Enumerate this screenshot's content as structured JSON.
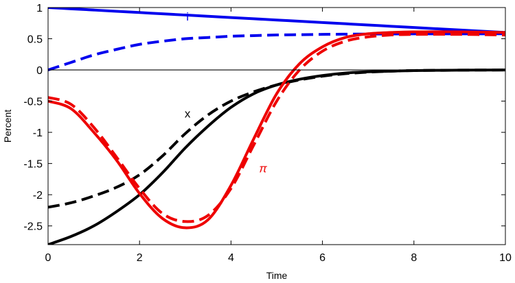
{
  "chart_data": {
    "type": "line",
    "title": "",
    "xlabel": "Time",
    "ylabel": "Percent",
    "xlim": [
      0,
      10
    ],
    "ylim": [
      -2.8,
      1
    ],
    "xticks": [
      0,
      2,
      4,
      6,
      8,
      10
    ],
    "yticks": [
      1,
      0.5,
      0,
      -0.5,
      -1,
      -1.5,
      -2,
      -2.5
    ],
    "grid": false,
    "zero_line": true,
    "x": [
      0,
      0.5,
      1,
      1.5,
      2,
      2.5,
      3,
      3.5,
      4,
      4.5,
      5,
      5.5,
      6,
      6.5,
      7,
      7.5,
      8,
      9,
      10
    ],
    "series": [
      {
        "key": "i_solid",
        "color": "#0000ee",
        "dash": "solid",
        "values": [
          1.0,
          0.98,
          0.96,
          0.94,
          0.92,
          0.9,
          0.88,
          0.86,
          0.84,
          0.82,
          0.8,
          0.78,
          0.76,
          0.74,
          0.72,
          0.7,
          0.68,
          0.64,
          0.6
        ]
      },
      {
        "key": "i_dashed",
        "color": "#0000ee",
        "dash": "dashed",
        "values": [
          0.0,
          0.12,
          0.24,
          0.33,
          0.41,
          0.46,
          0.5,
          0.52,
          0.54,
          0.55,
          0.56,
          0.565,
          0.57,
          0.573,
          0.575,
          0.577,
          0.578,
          0.578,
          0.58
        ]
      },
      {
        "key": "x_solid",
        "color": "#000000",
        "dash": "solid",
        "values": [
          -2.8,
          -2.67,
          -2.5,
          -2.27,
          -2.0,
          -1.65,
          -1.25,
          -0.9,
          -0.6,
          -0.38,
          -0.24,
          -0.15,
          -0.09,
          -0.05,
          -0.03,
          -0.02,
          -0.01,
          -0.004,
          -0.001
        ]
      },
      {
        "key": "x_dashed",
        "color": "#000000",
        "dash": "dashed",
        "values": [
          -2.2,
          -2.13,
          -2.02,
          -1.88,
          -1.68,
          -1.38,
          -1.02,
          -0.72,
          -0.5,
          -0.35,
          -0.24,
          -0.16,
          -0.1,
          -0.06,
          -0.035,
          -0.02,
          -0.01,
          -0.004,
          -0.001
        ]
      },
      {
        "key": "pi_solid",
        "color": "#ee0000",
        "dash": "solid",
        "values": [
          -0.5,
          -0.62,
          -1.0,
          -1.45,
          -1.98,
          -2.38,
          -2.53,
          -2.4,
          -1.85,
          -1.1,
          -0.38,
          0.1,
          0.37,
          0.52,
          0.58,
          0.6,
          0.61,
          0.61,
          0.6
        ]
      },
      {
        "key": "pi_dashed",
        "color": "#ee0000",
        "dash": "dashed",
        "values": [
          -0.44,
          -0.55,
          -0.92,
          -1.4,
          -1.9,
          -2.3,
          -2.43,
          -2.33,
          -1.9,
          -1.2,
          -0.5,
          0.0,
          0.3,
          0.46,
          0.53,
          0.56,
          0.57,
          0.57,
          0.56
        ]
      }
    ],
    "annotations": [
      {
        "text": "i",
        "x": 3.05,
        "y": 0.79,
        "color": "#0000ee"
      },
      {
        "text": "x",
        "x": 3.05,
        "y": -0.76,
        "color": "#000000"
      },
      {
        "text": "π",
        "x": 4.7,
        "y": -1.64,
        "color": "#ee0000",
        "italic": true
      }
    ]
  }
}
